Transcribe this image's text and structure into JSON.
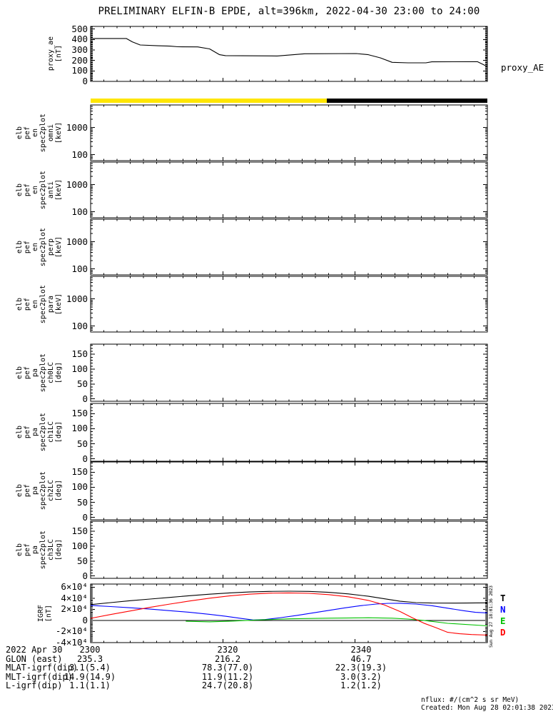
{
  "title": "PRELIMINARY ELFIN-B EPDE, alt=396km, 2022-04-30 23:00 to 24:00",
  "side_timestamp": "Sun Aug 27 18:01:36 2023",
  "footer": {
    "nflux": "nflux: #/(cm^2 s sr MeV)",
    "created": "Created: Mon Aug 28 02:01:38 2023"
  },
  "colors": {
    "background": "#ffffff",
    "frame": "#000000",
    "bar_day": "#ffe600",
    "bar_night": "#000000",
    "trace_T": "#000000",
    "trace_N": "#0000ff",
    "trace_E": "#00c000",
    "trace_D": "#ff0000"
  },
  "bottom_table": {
    "rows": [
      {
        "label": "2022 Apr 30",
        "values": [
          "2300",
          "2320",
          "2340"
        ]
      },
      {
        "label": "GLON (east)",
        "values": [
          "235.3",
          "216.2",
          "46.7"
        ]
      },
      {
        "label": "MLAT-igrf(dip)",
        "values": [
          "3.1(5.4)",
          "78.3(77.0)",
          "22.3(19.3)"
        ]
      },
      {
        "label": "MLT-igrf(dip)",
        "values": [
          "14.9(14.9)",
          "11.9(11.2)",
          "3.0(3.2)"
        ]
      },
      {
        "label": "L-igrf(dip)",
        "values": [
          "1.1(1.1)",
          "24.7(20.8)",
          "1.2(1.2)"
        ]
      }
    ]
  },
  "chart_data": {
    "xaxis": {
      "range_label": [
        "23:00",
        "24:00"
      ],
      "ticks": [
        {
          "t": 0.0,
          "label": "2300"
        },
        {
          "t": 0.3333,
          "label": "2320"
        },
        {
          "t": 0.6667,
          "label": "2340"
        }
      ],
      "minor_tick_minutes": 2
    },
    "panels": [
      {
        "id": "proxy_ae",
        "type": "line",
        "label_lines": [
          "proxy_ae",
          "[nT]"
        ],
        "label_right_x": 88,
        "right_label": "proxy_AE",
        "scale": "linear",
        "ylim": [
          0,
          525
        ],
        "minor_step": 10,
        "major_step": 100,
        "yticks": [
          {
            "v": 0,
            "l": "0"
          },
          {
            "v": 100,
            "l": "100"
          },
          {
            "v": 200,
            "l": "200"
          },
          {
            "v": 300,
            "l": "300"
          },
          {
            "v": 400,
            "l": "400"
          },
          {
            "v": 500,
            "l": "500"
          }
        ],
        "series": [
          {
            "name": "proxy_AE",
            "color": "#000000",
            "points": [
              [
                0,
                410
              ],
              [
                0.09,
                410
              ],
              [
                0.105,
                378
              ],
              [
                0.125,
                348
              ],
              [
                0.17,
                340
              ],
              [
                0.2,
                337
              ],
              [
                0.22,
                331
              ],
              [
                0.27,
                329
              ],
              [
                0.3,
                310
              ],
              [
                0.325,
                255
              ],
              [
                0.34,
                246
              ],
              [
                0.47,
                243
              ],
              [
                0.54,
                264
              ],
              [
                0.67,
                266
              ],
              [
                0.7,
                255
              ],
              [
                0.73,
                225
              ],
              [
                0.76,
                182
              ],
              [
                0.8,
                177
              ],
              [
                0.845,
                177
              ],
              [
                0.86,
                187
              ],
              [
                0.975,
                188
              ],
              [
                1,
                142
              ]
            ]
          }
        ]
      },
      {
        "id": "bar",
        "type": "colorbar",
        "segments": [
          {
            "color": "#ffe600",
            "from": 0.0,
            "to": 0.595
          },
          {
            "color": "#000000",
            "from": 0.595,
            "to": 1.0
          }
        ]
      },
      {
        "id": "en_omni",
        "type": "spectrogram",
        "empty": true,
        "label_lines": [
          "elb",
          "pef",
          "en",
          "spec2plot",
          "omni",
          "[keV]"
        ],
        "scale": "log",
        "ylim": [
          60,
          6800
        ],
        "yticks": [
          {
            "v": 1000,
            "l": "1000"
          },
          {
            "v": 100,
            "l": "100"
          }
        ]
      },
      {
        "id": "en_anti",
        "type": "spectrogram",
        "empty": true,
        "label_lines": [
          "elb",
          "pef",
          "en",
          "spec2plot",
          "anti",
          "[keV]"
        ],
        "scale": "log",
        "ylim": [
          60,
          6800
        ],
        "yticks": [
          {
            "v": 1000,
            "l": "1000"
          },
          {
            "v": 100,
            "l": "100"
          }
        ]
      },
      {
        "id": "en_perp",
        "type": "spectrogram",
        "empty": true,
        "label_lines": [
          "elb",
          "pef",
          "en",
          "spec2plot",
          "perp",
          "[keV]"
        ],
        "scale": "log",
        "ylim": [
          60,
          6800
        ],
        "yticks": [
          {
            "v": 1000,
            "l": "1000"
          },
          {
            "v": 100,
            "l": "100"
          }
        ]
      },
      {
        "id": "en_para",
        "type": "spectrogram",
        "empty": true,
        "label_lines": [
          "elb",
          "pef",
          "en",
          "spec2plot",
          "para",
          "[keV]"
        ],
        "scale": "log",
        "ylim": [
          60,
          6800
        ],
        "yticks": [
          {
            "v": 1000,
            "l": "1000"
          },
          {
            "v": 100,
            "l": "100"
          }
        ]
      },
      {
        "id": "pa_ch0",
        "type": "spectrogram",
        "empty": true,
        "label_lines": [
          "elb",
          "pef",
          "pa",
          "spec2plot",
          "ch0LC",
          "[deg]"
        ],
        "scale": "linear",
        "ylim": [
          -8,
          184
        ],
        "minor_step": 10,
        "major_step": 50,
        "yticks": [
          {
            "v": 150,
            "l": "150"
          },
          {
            "v": 100,
            "l": "100"
          },
          {
            "v": 50,
            "l": "50"
          },
          {
            "v": 0,
            "l": "0"
          }
        ]
      },
      {
        "id": "pa_ch1",
        "type": "spectrogram",
        "empty": true,
        "label_lines": [
          "elb",
          "pef",
          "pa",
          "spec2plot",
          "ch1LC",
          "[deg]"
        ],
        "scale": "linear",
        "ylim": [
          -8,
          184
        ],
        "minor_step": 10,
        "major_step": 50,
        "yticks": [
          {
            "v": 150,
            "l": "150"
          },
          {
            "v": 100,
            "l": "100"
          },
          {
            "v": 50,
            "l": "50"
          },
          {
            "v": 0,
            "l": "0"
          }
        ]
      },
      {
        "id": "pa_ch2",
        "type": "spectrogram",
        "empty": true,
        "label_lines": [
          "elb",
          "pef",
          "pa",
          "spec2plot",
          "ch2LC",
          "[deg]"
        ],
        "scale": "linear",
        "ylim": [
          -8,
          184
        ],
        "minor_step": 10,
        "major_step": 50,
        "yticks": [
          {
            "v": 150,
            "l": "150"
          },
          {
            "v": 100,
            "l": "100"
          },
          {
            "v": 50,
            "l": "50"
          },
          {
            "v": 0,
            "l": "0"
          }
        ]
      },
      {
        "id": "pa_ch3",
        "type": "spectrogram",
        "empty": true,
        "label_lines": [
          "elb",
          "pef",
          "pa",
          "spec2plot",
          "ch3LC",
          "[deg]"
        ],
        "scale": "linear",
        "ylim": [
          -8,
          184
        ],
        "minor_step": 10,
        "major_step": 50,
        "yticks": [
          {
            "v": 150,
            "l": "150"
          },
          {
            "v": 100,
            "l": "100"
          },
          {
            "v": 50,
            "l": "50"
          },
          {
            "v": 0,
            "l": "0"
          }
        ]
      },
      {
        "id": "igrf",
        "type": "line",
        "label_lines": [
          "IGRF",
          "[nT]"
        ],
        "label_right_x": 74,
        "scale": "linear",
        "ylim": [
          -40000,
          65500
        ],
        "minor_step": 2500,
        "major_step": 20000,
        "zero_line": true,
        "yticks": [
          {
            "v": 60000,
            "l": "6×10⁴"
          },
          {
            "v": 40000,
            "l": "4×10⁴"
          },
          {
            "v": 20000,
            "l": "2×10⁴"
          },
          {
            "v": 0,
            "l": "0"
          },
          {
            "v": -20000,
            "l": "-2×10⁴"
          },
          {
            "v": -40000,
            "l": "-4×10⁴"
          }
        ],
        "legend": [
          {
            "label": "T",
            "color": "#000000"
          },
          {
            "label": "N",
            "color": "#0000ff"
          },
          {
            "label": "E",
            "color": "#00c000"
          },
          {
            "label": "D",
            "color": "#ff0000"
          }
        ],
        "series": [
          {
            "name": "T",
            "color": "#000000",
            "points": [
              [
                0,
                28500
              ],
              [
                0.05,
                32000
              ],
              [
                0.1,
                35500
              ],
              [
                0.15,
                38500
              ],
              [
                0.2,
                41500
              ],
              [
                0.25,
                44500
              ],
              [
                0.3,
                47200
              ],
              [
                0.35,
                49500
              ],
              [
                0.4,
                51200
              ],
              [
                0.45,
                52300
              ],
              [
                0.5,
                52600
              ],
              [
                0.55,
                52200
              ],
              [
                0.6,
                50600
              ],
              [
                0.65,
                47800
              ],
              [
                0.7,
                43500
              ],
              [
                0.74,
                39000
              ],
              [
                0.78,
                34500
              ],
              [
                0.82,
                32000
              ],
              [
                0.86,
                31300
              ],
              [
                0.92,
                31100
              ],
              [
                1,
                31600
              ]
            ]
          },
          {
            "name": "N",
            "color": "#0000ff",
            "points": [
              [
                0,
                27000
              ],
              [
                0.05,
                25000
              ],
              [
                0.1,
                22800
              ],
              [
                0.15,
                20300
              ],
              [
                0.2,
                17500
              ],
              [
                0.25,
                14500
              ],
              [
                0.3,
                11000
              ],
              [
                0.34,
                7500
              ],
              [
                0.38,
                3500
              ],
              [
                0.41,
                800
              ],
              [
                0.44,
                1500
              ],
              [
                0.48,
                5000
              ],
              [
                0.52,
                9000
              ],
              [
                0.56,
                13500
              ],
              [
                0.6,
                18000
              ],
              [
                0.64,
                22500
              ],
              [
                0.68,
                26500
              ],
              [
                0.72,
                29500
              ],
              [
                0.75,
                30800
              ],
              [
                0.78,
                30900
              ],
              [
                0.82,
                29500
              ],
              [
                0.86,
                26500
              ],
              [
                0.9,
                22000
              ],
              [
                0.94,
                17500
              ],
              [
                0.97,
                14500
              ],
              [
                1,
                13500
              ]
            ]
          },
          {
            "name": "E",
            "color": "#00c000",
            "points": [
              [
                0.24,
                -1500
              ],
              [
                0.3,
                -2500
              ],
              [
                0.36,
                -1200
              ],
              [
                0.42,
                800
              ],
              [
                0.46,
                1800
              ],
              [
                0.5,
                2800
              ],
              [
                0.6,
                4000
              ],
              [
                0.7,
                4800
              ],
              [
                0.76,
                4000
              ],
              [
                0.8,
                2500
              ],
              [
                0.84,
                0
              ],
              [
                0.9,
                -5200
              ],
              [
                1,
                -9800
              ]
            ]
          },
          {
            "name": "D",
            "color": "#ff0000",
            "points": [
              [
                0,
                3700
              ],
              [
                0.05,
                10500
              ],
              [
                0.1,
                17000
              ],
              [
                0.15,
                23500
              ],
              [
                0.2,
                29500
              ],
              [
                0.25,
                35000
              ],
              [
                0.3,
                40000
              ],
              [
                0.35,
                44200
              ],
              [
                0.4,
                47200
              ],
              [
                0.45,
                49000
              ],
              [
                0.5,
                49600
              ],
              [
                0.55,
                48800
              ],
              [
                0.6,
                46500
              ],
              [
                0.65,
                42500
              ],
              [
                0.7,
                36000
              ],
              [
                0.74,
                28000
              ],
              [
                0.78,
                16000
              ],
              [
                0.81,
                5000
              ],
              [
                0.84,
                -5000
              ],
              [
                0.87,
                -13000
              ],
              [
                0.9,
                -21500
              ],
              [
                0.93,
                -24000
              ],
              [
                0.96,
                -25500
              ],
              [
                1,
                -26500
              ]
            ]
          }
        ]
      }
    ]
  }
}
